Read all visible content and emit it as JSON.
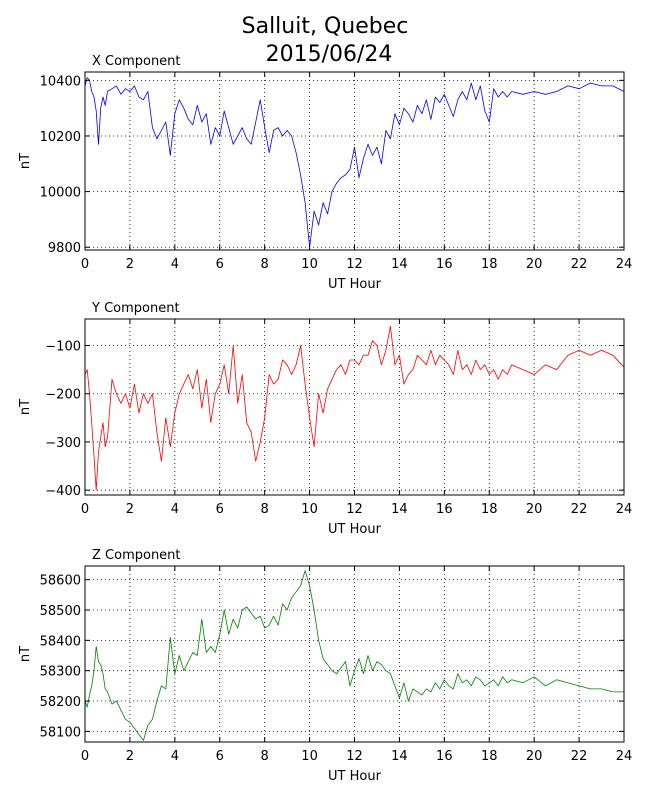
{
  "figure": {
    "title_line1": "Salluit, Quebec",
    "title_line2": "2015/06/24"
  },
  "chart_data": [
    {
      "type": "line",
      "title": "X Component",
      "xlabel": "UT Hour",
      "ylabel": "nT",
      "xlim": [
        0,
        24
      ],
      "ylim": [
        9790,
        10430
      ],
      "xticks": [
        0,
        2,
        4,
        6,
        8,
        10,
        12,
        14,
        16,
        18,
        20,
        22,
        24
      ],
      "yticks": [
        9800,
        10000,
        10200,
        10400
      ],
      "grid": true,
      "color": "#0000ff",
      "series": [
        {
          "x": [
            0,
            0.1,
            0.2,
            0.3,
            0.4,
            0.5,
            0.6,
            0.7,
            0.8,
            0.9,
            1.0,
            1.2,
            1.4,
            1.6,
            1.8,
            2.0,
            2.2,
            2.4,
            2.6,
            2.8,
            3.0,
            3.2,
            3.4,
            3.6,
            3.8,
            4.0,
            4.2,
            4.4,
            4.6,
            4.8,
            5.0,
            5.2,
            5.4,
            5.6,
            5.8,
            6.0,
            6.2,
            6.4,
            6.6,
            6.8,
            7.0,
            7.2,
            7.4,
            7.6,
            7.8,
            8.0,
            8.2,
            8.4,
            8.6,
            8.8,
            9.0,
            9.2,
            9.4,
            9.6,
            9.8,
            10.0,
            10.2,
            10.4,
            10.6,
            10.8,
            11.0,
            11.2,
            11.4,
            11.6,
            11.8,
            12.0,
            12.2,
            12.4,
            12.6,
            12.8,
            13.0,
            13.2,
            13.4,
            13.6,
            13.8,
            14.0,
            14.2,
            14.4,
            14.6,
            14.8,
            15.0,
            15.2,
            15.4,
            15.6,
            15.8,
            16.0,
            16.2,
            16.4,
            16.6,
            16.8,
            17.0,
            17.2,
            17.4,
            17.6,
            17.8,
            18.0,
            18.2,
            18.4,
            18.6,
            18.8,
            19.0,
            19.5,
            20.0,
            20.5,
            21.0,
            21.5,
            22.0,
            22.5,
            23.0,
            23.5,
            24.0
          ],
          "values": [
            10380,
            10410,
            10400,
            10360,
            10340,
            10290,
            10170,
            10300,
            10340,
            10310,
            10360,
            10370,
            10380,
            10350,
            10370,
            10360,
            10380,
            10340,
            10330,
            10360,
            10230,
            10190,
            10220,
            10250,
            10130,
            10280,
            10330,
            10300,
            10260,
            10240,
            10310,
            10250,
            10280,
            10170,
            10230,
            10200,
            10290,
            10230,
            10170,
            10200,
            10230,
            10190,
            10170,
            10250,
            10330,
            10230,
            10140,
            10220,
            10230,
            10200,
            10220,
            10200,
            10140,
            10060,
            9960,
            9800,
            9930,
            9880,
            9960,
            9920,
            10000,
            10030,
            10050,
            10060,
            10080,
            10160,
            10050,
            10120,
            10170,
            10130,
            10160,
            10100,
            10220,
            10190,
            10280,
            10240,
            10300,
            10280,
            10250,
            10310,
            10280,
            10330,
            10260,
            10340,
            10320,
            10350,
            10310,
            10270,
            10330,
            10360,
            10330,
            10390,
            10330,
            10380,
            10290,
            10250,
            10370,
            10340,
            10360,
            10340,
            10360,
            10350,
            10360,
            10350,
            10360,
            10380,
            10370,
            10390,
            10380,
            10380,
            10360
          ]
        }
      ]
    },
    {
      "type": "line",
      "title": "Y Component",
      "xlabel": "UT Hour",
      "ylabel": "nT",
      "xlim": [
        0,
        24
      ],
      "ylim": [
        -410,
        -45
      ],
      "xticks": [
        0,
        2,
        4,
        6,
        8,
        10,
        12,
        14,
        16,
        18,
        20,
        22,
        24
      ],
      "yticks": [
        -100,
        -200,
        -300,
        -400
      ],
      "grid": true,
      "color": "#ff0000",
      "series": [
        {
          "x": [
            0,
            0.1,
            0.2,
            0.3,
            0.4,
            0.5,
            0.6,
            0.7,
            0.8,
            0.9,
            1.0,
            1.2,
            1.4,
            1.6,
            1.8,
            2.0,
            2.2,
            2.4,
            2.6,
            2.8,
            3.0,
            3.2,
            3.4,
            3.6,
            3.8,
            4.0,
            4.2,
            4.4,
            4.6,
            4.8,
            5.0,
            5.2,
            5.4,
            5.6,
            5.8,
            6.0,
            6.2,
            6.4,
            6.6,
            6.8,
            7.0,
            7.2,
            7.4,
            7.6,
            7.8,
            8.0,
            8.2,
            8.4,
            8.6,
            8.8,
            9.0,
            9.2,
            9.4,
            9.6,
            9.8,
            10.0,
            10.2,
            10.4,
            10.6,
            10.8,
            11.0,
            11.2,
            11.4,
            11.6,
            11.8,
            12.0,
            12.2,
            12.4,
            12.6,
            12.8,
            13.0,
            13.2,
            13.4,
            13.6,
            13.8,
            14.0,
            14.2,
            14.4,
            14.6,
            14.8,
            15.0,
            15.2,
            15.4,
            15.6,
            15.8,
            16.0,
            16.2,
            16.4,
            16.6,
            16.8,
            17.0,
            17.2,
            17.4,
            17.6,
            17.8,
            18.0,
            18.2,
            18.4,
            18.6,
            18.8,
            19.0,
            19.5,
            20.0,
            20.5,
            21.0,
            21.5,
            22.0,
            22.5,
            23.0,
            23.5,
            24.0
          ],
          "values": [
            -160,
            -150,
            -200,
            -260,
            -330,
            -400,
            -320,
            -290,
            -260,
            -310,
            -290,
            -170,
            -200,
            -220,
            -200,
            -230,
            -180,
            -240,
            -200,
            -220,
            -200,
            -280,
            -340,
            -250,
            -310,
            -240,
            -200,
            -180,
            -160,
            -190,
            -150,
            -230,
            -170,
            -260,
            -200,
            -180,
            -140,
            -200,
            -100,
            -220,
            -160,
            -260,
            -280,
            -340,
            -300,
            -250,
            -160,
            -180,
            -170,
            -130,
            -140,
            -160,
            -140,
            -100,
            -180,
            -250,
            -310,
            -200,
            -240,
            -190,
            -170,
            -150,
            -140,
            -160,
            -130,
            -130,
            -140,
            -120,
            -120,
            -90,
            -100,
            -140,
            -110,
            -60,
            -140,
            -120,
            -180,
            -160,
            -150,
            -120,
            -130,
            -140,
            -110,
            -140,
            -120,
            -130,
            -140,
            -160,
            -110,
            -150,
            -140,
            -160,
            -130,
            -150,
            -140,
            -160,
            -150,
            -170,
            -150,
            -160,
            -140,
            -150,
            -160,
            -140,
            -150,
            -120,
            -110,
            -120,
            -110,
            -120,
            -145
          ]
        }
      ]
    },
    {
      "type": "line",
      "title": "Z Component",
      "xlabel": "UT Hour",
      "ylabel": "nT",
      "xlim": [
        0,
        24
      ],
      "ylim": [
        58065,
        58645
      ],
      "xticks": [
        0,
        2,
        4,
        6,
        8,
        10,
        12,
        14,
        16,
        18,
        20,
        22,
        24
      ],
      "yticks": [
        58100,
        58200,
        58300,
        58400,
        58500,
        58600
      ],
      "grid": true,
      "color": "#008000",
      "series": [
        {
          "x": [
            0,
            0.1,
            0.2,
            0.3,
            0.4,
            0.5,
            0.6,
            0.7,
            0.8,
            0.9,
            1.0,
            1.2,
            1.4,
            1.6,
            1.8,
            2.0,
            2.2,
            2.4,
            2.6,
            2.8,
            3.0,
            3.2,
            3.4,
            3.6,
            3.8,
            4.0,
            4.2,
            4.4,
            4.6,
            4.8,
            5.0,
            5.2,
            5.4,
            5.6,
            5.8,
            6.0,
            6.2,
            6.4,
            6.6,
            6.8,
            7.0,
            7.2,
            7.4,
            7.6,
            7.8,
            8.0,
            8.2,
            8.4,
            8.6,
            8.8,
            9.0,
            9.2,
            9.4,
            9.6,
            9.8,
            10.0,
            10.2,
            10.4,
            10.6,
            10.8,
            11.0,
            11.2,
            11.4,
            11.6,
            11.8,
            12.0,
            12.2,
            12.4,
            12.6,
            12.8,
            13.0,
            13.2,
            13.4,
            13.6,
            13.8,
            14.0,
            14.2,
            14.4,
            14.6,
            14.8,
            15.0,
            15.2,
            15.4,
            15.6,
            15.8,
            16.0,
            16.2,
            16.4,
            16.6,
            16.8,
            17.0,
            17.2,
            17.4,
            17.6,
            17.8,
            18.0,
            18.2,
            18.4,
            18.6,
            18.8,
            19.0,
            19.5,
            20.0,
            20.5,
            21.0,
            21.5,
            22.0,
            22.5,
            23.0,
            23.5,
            24.0
          ],
          "values": [
            58200,
            58180,
            58220,
            58250,
            58300,
            58380,
            58330,
            58320,
            58290,
            58240,
            58230,
            58190,
            58200,
            58170,
            58140,
            58130,
            58110,
            58090,
            58070,
            58120,
            58140,
            58200,
            58250,
            58240,
            58410,
            58290,
            58350,
            58300,
            58330,
            58360,
            58350,
            58470,
            58360,
            58380,
            58360,
            58420,
            58500,
            58420,
            58470,
            58440,
            58500,
            58510,
            58490,
            58470,
            58480,
            58440,
            58450,
            58480,
            58450,
            58520,
            58500,
            58540,
            58560,
            58580,
            58630,
            58580,
            58500,
            58400,
            58340,
            58320,
            58300,
            58290,
            58310,
            58330,
            58250,
            58300,
            58340,
            58290,
            58350,
            58300,
            58330,
            58320,
            58300,
            58290,
            58250,
            58210,
            58260,
            58200,
            58240,
            58230,
            58220,
            58240,
            58230,
            58260,
            58240,
            58270,
            58250,
            58240,
            58290,
            58260,
            58270,
            58250,
            58280,
            58270,
            58250,
            58260,
            58270,
            58250,
            58280,
            58260,
            58270,
            58260,
            58280,
            58250,
            58270,
            58260,
            58250,
            58240,
            58240,
            58230,
            58230
          ]
        }
      ]
    }
  ]
}
